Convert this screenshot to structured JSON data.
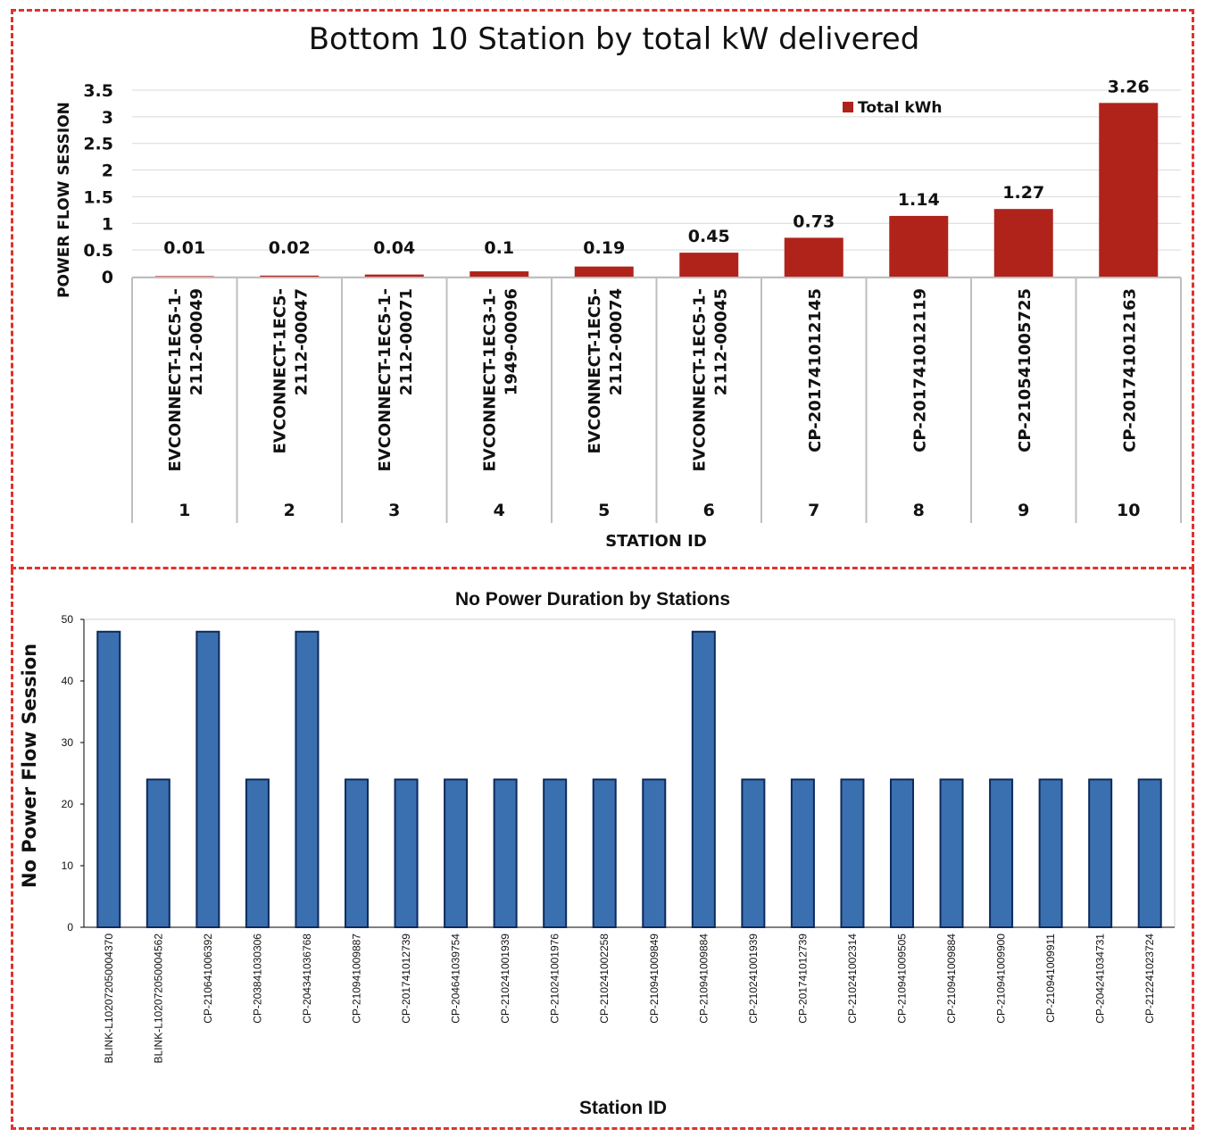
{
  "chart_data": [
    {
      "type": "bar",
      "title": "Bottom 10 Station by total kW delivered",
      "xlabel": "STATION ID",
      "ylabel": "POWER FLOW SESSION",
      "ylim": [
        0,
        3.5
      ],
      "yticks": [
        "0",
        "0.5",
        "1",
        "1.5",
        "2",
        "2.5",
        "3",
        "3.5"
      ],
      "grid": true,
      "legend_position": "top-right",
      "categories": [
        "1",
        "2",
        "3",
        "4",
        "5",
        "6",
        "7",
        "8",
        "9",
        "10"
      ],
      "station_labels": [
        [
          "EVCONNECT-1EC5-1-",
          "2112-00049"
        ],
        [
          "EVCONNECT-1EC5-",
          "2112-00047"
        ],
        [
          "EVCONNECT-1EC5-1-",
          "2112-00071"
        ],
        [
          "EVCONNECT-1EC3-1-",
          "1949-00096"
        ],
        [
          "EVCONNECT-1EC5-",
          "2112-00074"
        ],
        [
          "EVCONNECT-1EC5-1-",
          "2112-00045"
        ],
        [
          "CP-201741012145"
        ],
        [
          "CP-201741012119"
        ],
        [
          "CP-210541005725"
        ],
        [
          "CP-201741012163"
        ]
      ],
      "series": [
        {
          "name": "Total kWh",
          "color": "#b0231b",
          "values": [
            0.01,
            0.02,
            0.04,
            0.1,
            0.19,
            0.45,
            0.73,
            1.14,
            1.27,
            3.26
          ],
          "data_labels": [
            "0.01",
            "0.02",
            "0.04",
            "0.1",
            "0.19",
            "0.45",
            "0.73",
            "1.14",
            "1.27",
            "3.26"
          ]
        }
      ]
    },
    {
      "type": "bar",
      "title": "No Power Duration by Stations",
      "xlabel": "Station ID",
      "ylabel": "No Power Flow Session",
      "ylim": [
        0,
        50
      ],
      "yticks": [
        "0",
        "10",
        "20",
        "30",
        "40",
        "50"
      ],
      "grid": false,
      "categories": [
        "BLINK-L102072050004370",
        "BLINK-L102072050004562",
        "CP-210641006392",
        "CP-203841030306",
        "CP-204341036768",
        "CP-210941009887",
        "CP-201741012739",
        "CP-204641039754",
        "CP-210241001939",
        "CP-210241001976",
        "CP-210241002258",
        "CP-210941009849",
        "CP-210941009884",
        "CP-210241001939",
        "CP-201741012739",
        "CP-210241002314",
        "CP-210941009505",
        "CP-210941009884",
        "CP-210941009900",
        "CP-210941009911",
        "CP-204241034731",
        "CP-212241023724"
      ],
      "series": [
        {
          "color": "#3a70b0",
          "values": [
            48,
            24,
            48,
            24,
            48,
            24,
            24,
            24,
            24,
            24,
            24,
            24,
            48,
            24,
            24,
            24,
            24,
            24,
            24,
            24,
            24,
            24
          ]
        }
      ]
    }
  ]
}
